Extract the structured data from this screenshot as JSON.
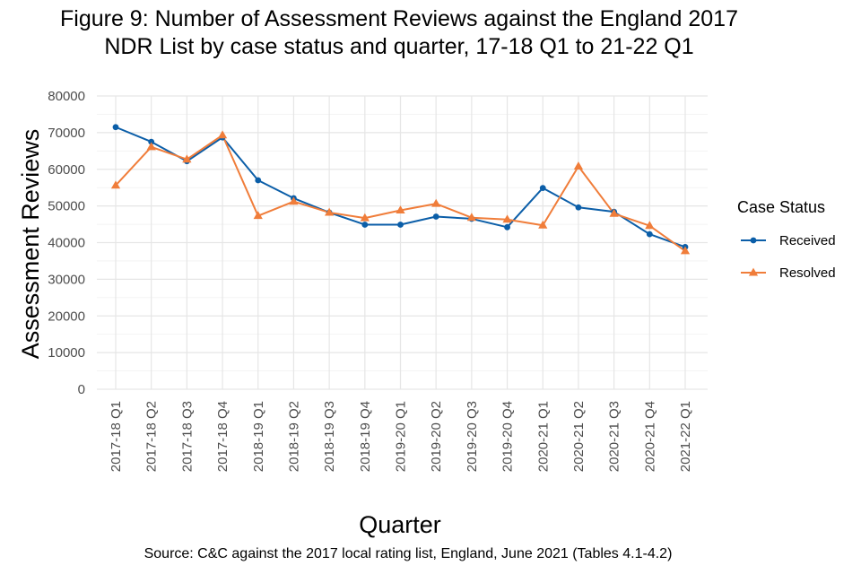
{
  "title_line1": "Figure 9: Number of Assessment Reviews against the England 2017",
  "title_line2": "NDR List by case status and quarter, 17-18 Q1 to 21-22 Q1",
  "source": "Source: C&C against the 2017 local rating list, England, June 2021 (Tables 4.1-4.2)",
  "chart_data": {
    "type": "line",
    "title": "Figure 9: Number of Assessment Reviews against the England 2017 NDR List by case status and quarter, 17-18 Q1 to 21-22 Q1",
    "xlabel": "Quarter",
    "ylabel": "Assessment Reviews",
    "ylim": [
      0,
      80000
    ],
    "yticks": [
      0,
      10000,
      20000,
      30000,
      40000,
      50000,
      60000,
      70000,
      80000
    ],
    "yticklabels": [
      "0",
      "10000",
      "20000",
      "30000",
      "40000",
      "50000",
      "60000",
      "70000",
      "80000"
    ],
    "categories": [
      "2017-18 Q1",
      "2017-18 Q2",
      "2017-18 Q3",
      "2017-18 Q4",
      "2018-19 Q1",
      "2018-19 Q2",
      "2018-19 Q3",
      "2018-19 Q4",
      "2019-20 Q1",
      "2019-20 Q2",
      "2019-20 Q3",
      "2019-20 Q4",
      "2020-21 Q1",
      "2020-21 Q2",
      "2020-21 Q3",
      "2020-21 Q4",
      "2021-22 Q1"
    ],
    "legend_title": "Case Status",
    "legend_position": "right",
    "series": [
      {
        "name": "Received",
        "color": "#0b5ea8",
        "marker": "circle",
        "values": [
          71500,
          67500,
          62200,
          68700,
          57000,
          52100,
          48200,
          44900,
          44900,
          47100,
          46500,
          44200,
          54900,
          49600,
          48400,
          42300,
          38800
        ]
      },
      {
        "name": "Resolved",
        "color": "#f07d3a",
        "marker": "triangle",
        "values": [
          55600,
          66100,
          62700,
          69300,
          47300,
          51200,
          48200,
          46700,
          48800,
          50600,
          46800,
          46300,
          44700,
          60800,
          47900,
          44600,
          37700
        ]
      }
    ]
  }
}
